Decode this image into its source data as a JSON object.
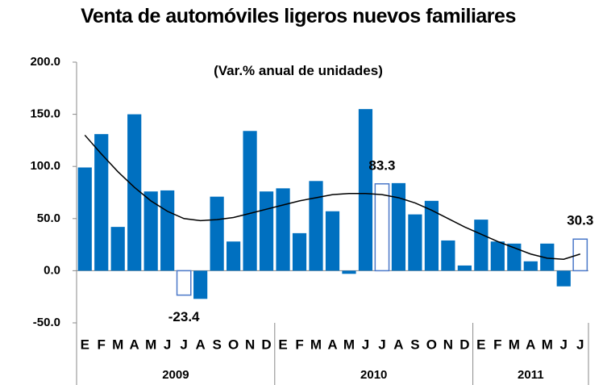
{
  "chart_data": {
    "type": "bar",
    "title": "Venta de automóviles ligeros nuevos familiares",
    "subtitle": "(Var.% anual de unidades)",
    "categories": [
      "E",
      "F",
      "M",
      "A",
      "M",
      "J",
      "J",
      "A",
      "S",
      "O",
      "N",
      "D",
      "E",
      "F",
      "M",
      "A",
      "M",
      "J",
      "J",
      "A",
      "S",
      "O",
      "N",
      "D",
      "E",
      "F",
      "M",
      "A",
      "M",
      "J",
      "J"
    ],
    "groups": [
      {
        "label": "2009",
        "count": 12
      },
      {
        "label": "2010",
        "count": 12
      },
      {
        "label": "2011",
        "count": 7
      }
    ],
    "series": [
      {
        "color": "#0070c0",
        "values": [
          99,
          131,
          42,
          150,
          76,
          77,
          -23.4,
          -27,
          71,
          28,
          134,
          76,
          79,
          36,
          86,
          57,
          -3,
          155,
          83.3,
          84,
          54,
          67,
          29,
          5,
          49,
          28,
          26,
          9,
          26,
          -15,
          30.3
        ]
      },
      {
        "type": "line",
        "color": "#000000",
        "values": [
          130,
          112,
          95,
          80,
          67,
          57,
          50,
          48,
          49,
          51,
          55,
          59,
          63,
          67,
          70,
          73,
          74,
          74,
          73,
          70,
          65,
          58,
          50,
          42,
          35,
          28,
          22,
          16,
          12,
          11,
          16
        ]
      }
    ],
    "outlined": [
      6,
      18,
      30
    ],
    "ylim": [
      -50,
      200
    ],
    "yticks": [
      {
        "value": -50,
        "label": "-50.0"
      },
      {
        "value": 0,
        "label": "0.0"
      },
      {
        "value": 50,
        "label": "50.0"
      },
      {
        "value": 100,
        "label": "100.0"
      },
      {
        "value": 150,
        "label": "150.0"
      },
      {
        "value": 200,
        "label": "200.0"
      }
    ]
  }
}
